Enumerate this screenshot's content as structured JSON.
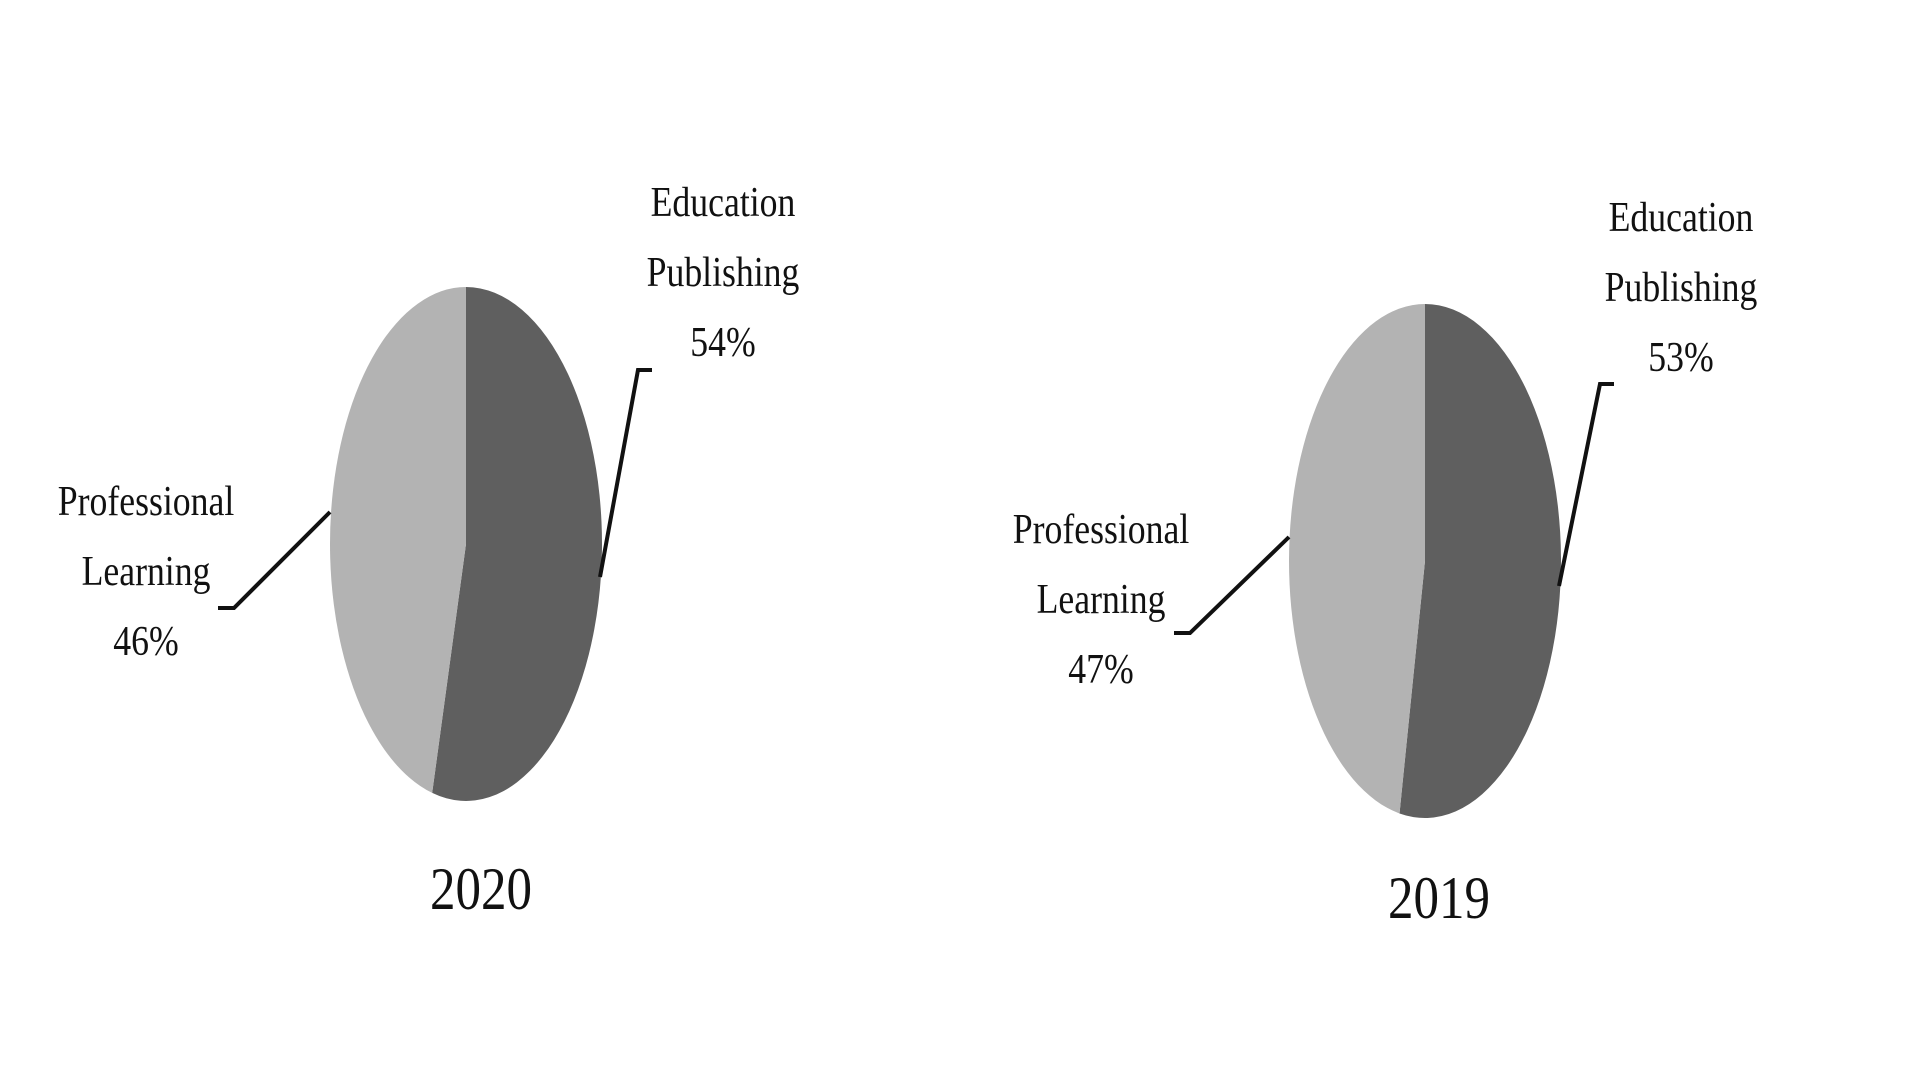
{
  "chart_data": [
    {
      "type": "pie",
      "title": "2020",
      "categories": [
        "Education Publishing",
        "Professional Learning"
      ],
      "values": [
        54,
        46
      ],
      "value_labels": [
        "54%",
        "46%"
      ],
      "colors": [
        "#5f5f5f",
        "#b3b3b3"
      ]
    },
    {
      "type": "pie",
      "title": "2019",
      "categories": [
        "Education Publishing",
        "Professional Learning"
      ],
      "values": [
        53,
        47
      ],
      "value_labels": [
        "53%",
        "47%"
      ],
      "colors": [
        "#5f5f5f",
        "#b3b3b3"
      ]
    }
  ]
}
